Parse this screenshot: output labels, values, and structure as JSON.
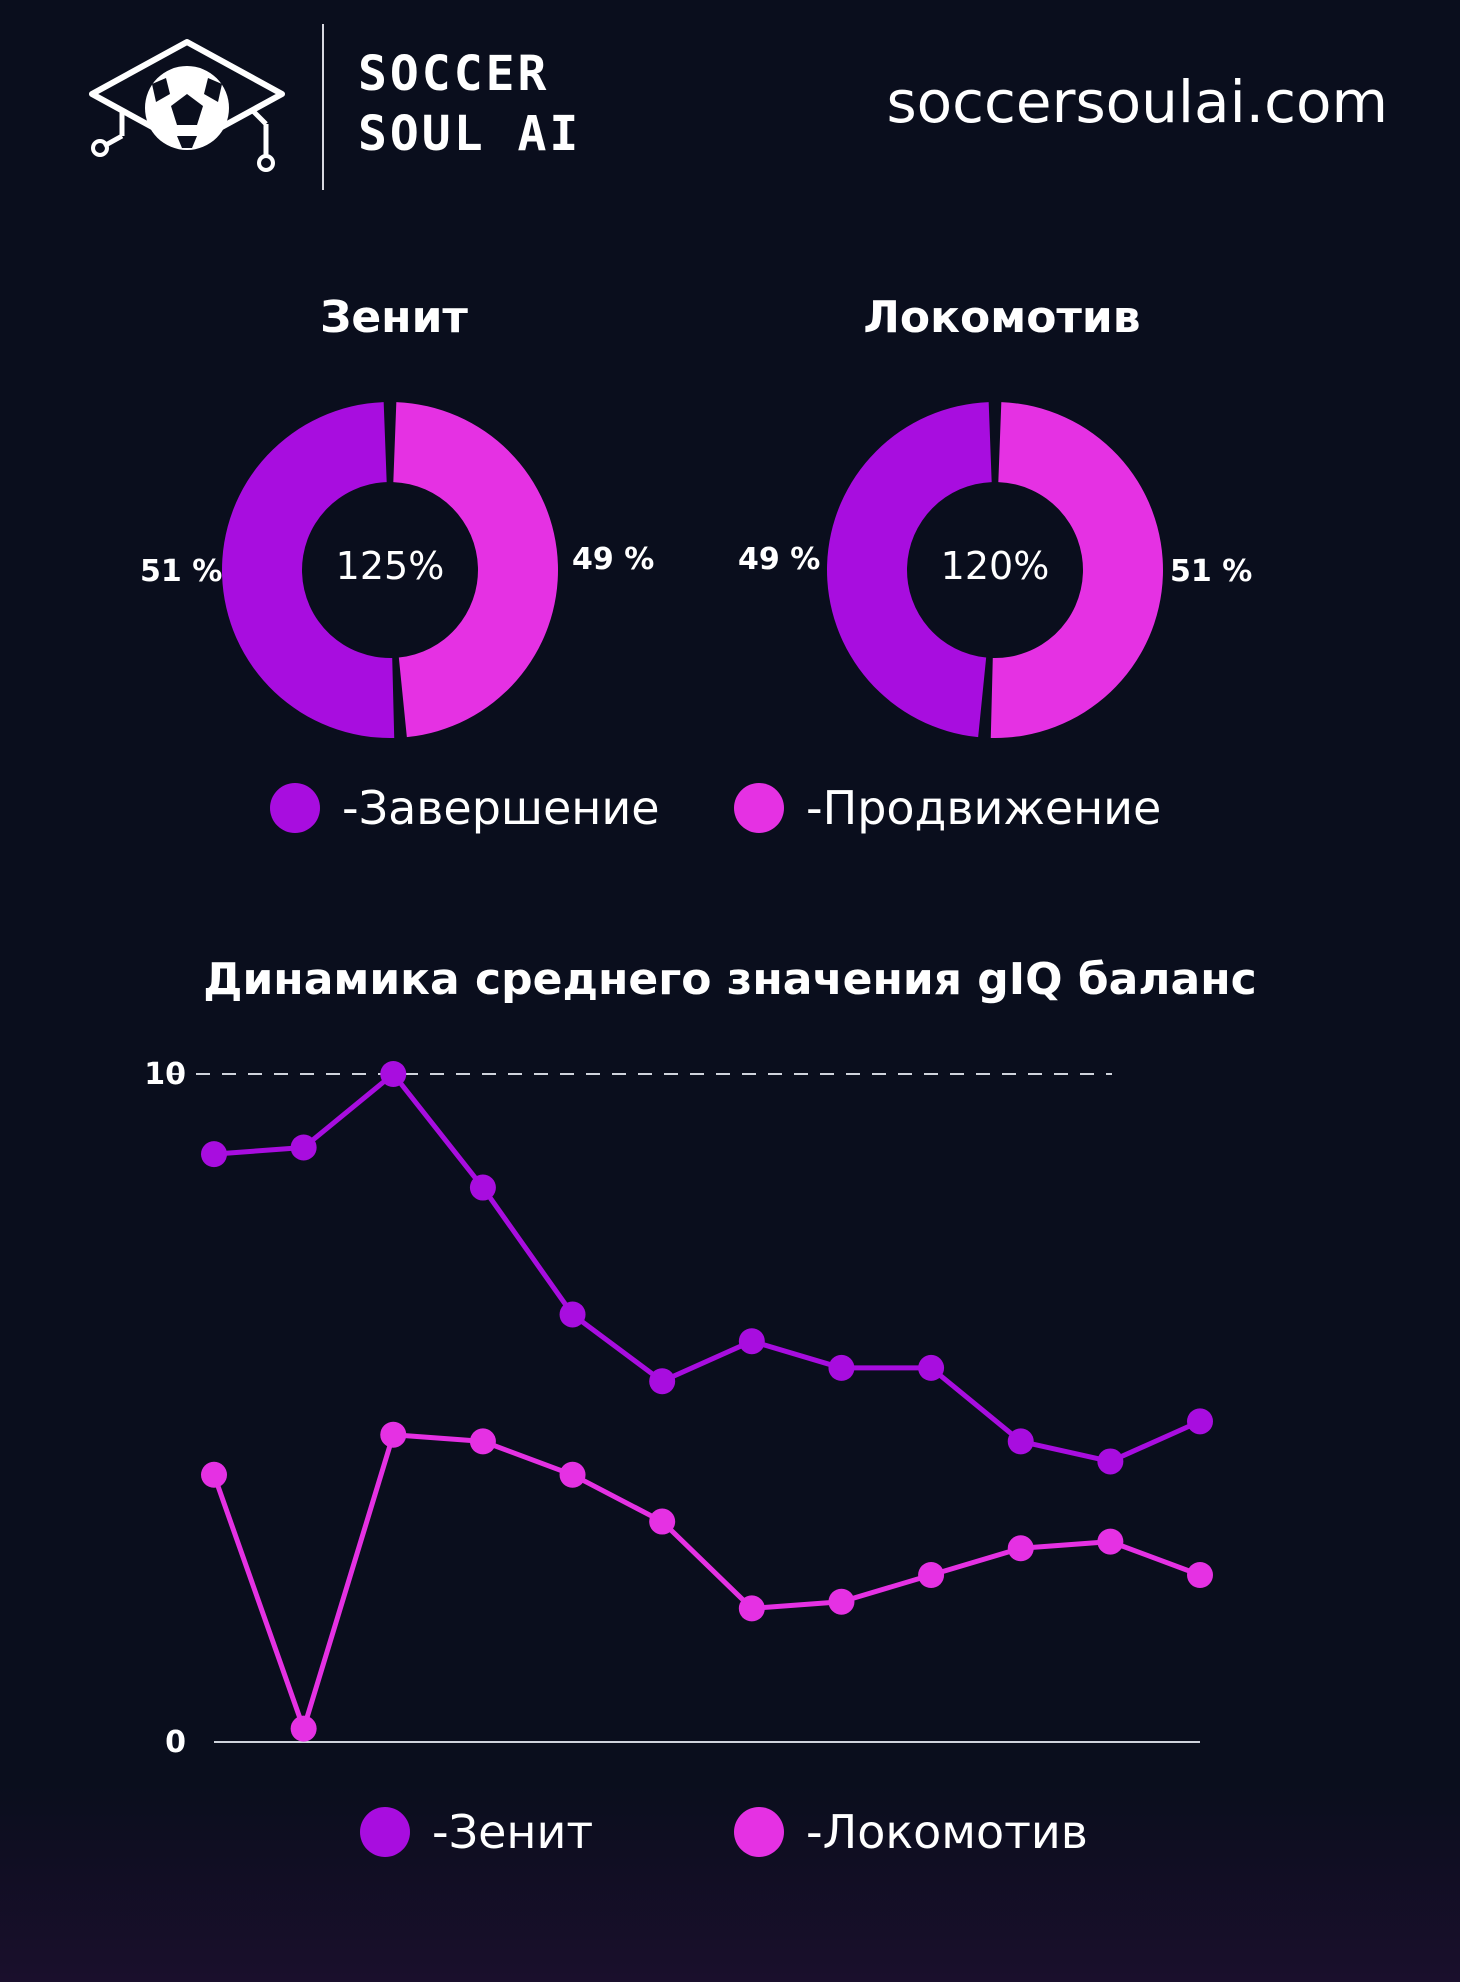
{
  "header": {
    "brand_line1": "SOCCER",
    "brand_line2": "SOUL AI",
    "site": "soccersoulai.com",
    "logo_icon": "soccer-ball-graduation-cap-icon"
  },
  "colors": {
    "background": "#0a0e1d",
    "finish": "#a80ddf",
    "promo": "#e531e3",
    "zenit": "#a80ddf",
    "loko": "#e531e3"
  },
  "chart_data": [
    {
      "type": "pie",
      "title": "Зенит",
      "center_label": "125%",
      "slices": [
        {
          "name": "Завершение",
          "value": 51,
          "label": "51 %"
        },
        {
          "name": "Продвижение",
          "value": 49,
          "label": "49 %"
        }
      ]
    },
    {
      "type": "pie",
      "title": "Локомотив",
      "center_label": "120%",
      "slices": [
        {
          "name": "Завершение",
          "value": 49,
          "label": "49 %"
        },
        {
          "name": "Продвижение",
          "value": 51,
          "label": "51 %"
        }
      ]
    },
    {
      "type": "line",
      "title": "Динамика среднего значения gIQ баланс",
      "ylim": [
        0,
        10
      ],
      "yticks": [
        "0",
        "10"
      ],
      "grid_line_at": 10,
      "series": [
        {
          "name": "Зенит",
          "values": [
            8.8,
            8.9,
            10.0,
            8.3,
            6.4,
            5.4,
            6.0,
            5.6,
            5.6,
            4.5,
            4.2,
            4.8
          ]
        },
        {
          "name": "Локомотив",
          "values": [
            4.0,
            0.2,
            4.6,
            4.5,
            4.0,
            3.3,
            2.0,
            2.1,
            2.5,
            2.9,
            3.0,
            2.5
          ]
        }
      ]
    }
  ],
  "legend": {
    "finish": "-Завершение",
    "promo": "-Продвижение",
    "zenit": "-Зенит",
    "loko": "-Локомотив"
  }
}
